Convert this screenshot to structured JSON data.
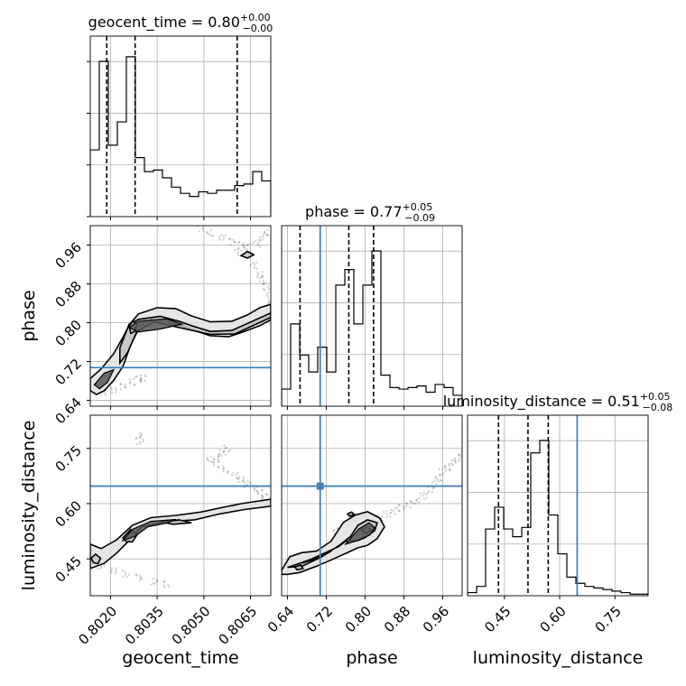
{
  "chart_data": {
    "type": "corner",
    "parameters": [
      "geocent_time",
      "phase",
      "luminosity_distance"
    ],
    "titles": [
      {
        "param": "geocent_time",
        "prefix": "geocent_time = ",
        "median": "0.80",
        "plus": "+0.00",
        "minus": "−0.00"
      },
      {
        "param": "phase",
        "prefix": "phase = ",
        "median": "0.77",
        "plus": "+0.05",
        "minus": "−0.09"
      },
      {
        "param": "luminosity_distance",
        "prefix": "luminosity_distance = ",
        "median": "0.51",
        "plus": "+0.05",
        "minus": "−0.08"
      }
    ],
    "axes": {
      "geocent_time": {
        "range": [
          0.80135,
          0.80715
        ],
        "ticks": [
          0.802,
          0.8035,
          0.805,
          0.8065
        ],
        "tick_labels": [
          "0.8020",
          "0.8035",
          "0.8050",
          "0.8065"
        ]
      },
      "phase": {
        "range": [
          0.628,
          1.0
        ],
        "ticks": [
          0.64,
          0.72,
          0.8,
          0.88,
          0.96
        ],
        "tick_labels": [
          "0.64",
          "0.72",
          "0.80",
          "0.88",
          "0.96"
        ]
      },
      "luminosity_distance": {
        "range": [
          0.35,
          0.84
        ],
        "ticks": [
          0.45,
          0.6,
          0.75
        ],
        "tick_labels": [
          "0.45",
          "0.60",
          "0.75"
        ]
      }
    },
    "truths": {
      "phase": 0.7075,
      "luminosity_distance": 0.6475
    },
    "quantiles": {
      "geocent_time": [
        0.80188,
        0.80279,
        0.80607
      ],
      "phase": [
        0.666,
        0.7665,
        0.8175
      ],
      "luminosity_distance": [
        0.434,
        0.514,
        0.569
      ]
    },
    "histograms": {
      "geocent_time": {
        "edges": [
          0.80135,
          0.80164,
          0.80193,
          0.80222,
          0.80251,
          0.8028,
          0.80309,
          0.80338,
          0.80367,
          0.80396,
          0.80425,
          0.80454,
          0.80483,
          0.80512,
          0.80541,
          0.8057,
          0.80599,
          0.80628,
          0.80657,
          0.80686,
          0.80715
        ],
        "counts": [
          0.43,
          1.0,
          0.46,
          0.61,
          1.03,
          0.38,
          0.29,
          0.3,
          0.25,
          0.19,
          0.15,
          0.13,
          0.16,
          0.15,
          0.17,
          0.17,
          0.2,
          0.21,
          0.29,
          0.23
        ]
      },
      "phase": {
        "edges": [
          0.628,
          0.6466,
          0.6652,
          0.6838,
          0.7024,
          0.721,
          0.7396,
          0.7582,
          0.7768,
          0.7954,
          0.814,
          0.8326,
          0.8512,
          0.8698,
          0.8884,
          0.907,
          0.9256,
          0.9442,
          0.9628,
          0.9814,
          1.0
        ],
        "counts": [
          0.11,
          0.53,
          0.33,
          0.22,
          0.38,
          0.22,
          0.78,
          0.88,
          0.53,
          0.78,
          1.0,
          0.2,
          0.12,
          0.11,
          0.12,
          0.13,
          0.09,
          0.14,
          0.12,
          0.07
        ]
      },
      "luminosity_distance": {
        "edges": [
          0.35,
          0.3745,
          0.399,
          0.4235,
          0.448,
          0.4725,
          0.497,
          0.5215,
          0.546,
          0.5705,
          0.595,
          0.6195,
          0.644,
          0.6685,
          0.693,
          0.7175,
          0.742,
          0.7665,
          0.791,
          0.8155,
          0.84
        ],
        "counts": [
          0.02,
          0.06,
          0.43,
          0.57,
          0.43,
          0.38,
          0.44,
          0.92,
          1.0,
          0.52,
          0.27,
          0.12,
          0.08,
          0.06,
          0.05,
          0.04,
          0.03,
          0.02,
          0.01,
          0.01
        ]
      }
    },
    "contours": {
      "phase|geocent_time": [
        [
          [
            0.80135,
            0.685
          ],
          [
            0.8017,
            0.705
          ],
          [
            0.8021,
            0.736
          ],
          [
            0.8024,
            0.77
          ],
          [
            0.80262,
            0.797
          ],
          [
            0.8029,
            0.818
          ],
          [
            0.8035,
            0.831
          ],
          [
            0.8041,
            0.829
          ],
          [
            0.8046,
            0.814
          ],
          [
            0.8052,
            0.802
          ],
          [
            0.8059,
            0.803
          ],
          [
            0.8064,
            0.816
          ],
          [
            0.8068,
            0.831
          ],
          [
            0.80715,
            0.838
          ],
          [
            0.80715,
            0.806
          ],
          [
            0.8068,
            0.794
          ],
          [
            0.8063,
            0.782
          ],
          [
            0.8058,
            0.771
          ],
          [
            0.8052,
            0.773
          ],
          [
            0.8046,
            0.786
          ],
          [
            0.8039,
            0.802
          ],
          [
            0.8033,
            0.807
          ],
          [
            0.80295,
            0.793
          ],
          [
            0.80265,
            0.754
          ],
          [
            0.8024,
            0.71
          ],
          [
            0.8021,
            0.681
          ],
          [
            0.8018,
            0.66
          ],
          [
            0.80155,
            0.652
          ],
          [
            0.80135,
            0.66
          ]
        ],
        [
          [
            0.8023,
            0.748
          ],
          [
            0.8026,
            0.797
          ],
          [
            0.8029,
            0.807
          ],
          [
            0.8036,
            0.813
          ],
          [
            0.8042,
            0.803
          ],
          [
            0.8046,
            0.794
          ],
          [
            0.8052,
            0.782
          ],
          [
            0.8059,
            0.784
          ],
          [
            0.80715,
            0.82
          ],
          [
            0.80715,
            0.811
          ],
          [
            0.806,
            0.777
          ],
          [
            0.8052,
            0.776
          ],
          [
            0.8042,
            0.79
          ],
          [
            0.8034,
            0.802
          ],
          [
            0.80285,
            0.782
          ],
          [
            0.80255,
            0.739
          ],
          [
            0.8023,
            0.717
          ]
        ],
        [
          [
            0.8026,
            0.793
          ],
          [
            0.80272,
            0.803
          ],
          [
            0.80285,
            0.797
          ],
          [
            0.80278,
            0.782
          ],
          [
            0.80265,
            0.778
          ]
        ],
        [
          [
            0.8062,
            0.938
          ],
          [
            0.8064,
            0.947
          ],
          [
            0.8066,
            0.94
          ],
          [
            0.8064,
            0.933
          ]
        ]
      ],
      "luminosity_distance|geocent_time": [
        [
          [
            0.80135,
            0.49
          ],
          [
            0.8017,
            0.478
          ],
          [
            0.8022,
            0.502
          ],
          [
            0.8027,
            0.541
          ],
          [
            0.8033,
            0.562
          ],
          [
            0.8041,
            0.568
          ],
          [
            0.8049,
            0.577
          ],
          [
            0.8055,
            0.588
          ],
          [
            0.8062,
            0.6
          ],
          [
            0.80715,
            0.612
          ],
          [
            0.80715,
            0.593
          ],
          [
            0.8063,
            0.584
          ],
          [
            0.8055,
            0.572
          ],
          [
            0.8047,
            0.556
          ],
          [
            0.8038,
            0.551
          ],
          [
            0.803,
            0.537
          ],
          [
            0.8026,
            0.5
          ],
          [
            0.8022,
            0.466
          ],
          [
            0.8018,
            0.438
          ],
          [
            0.80135,
            0.424
          ]
        ],
        [
          [
            0.80138,
            0.452
          ],
          [
            0.80152,
            0.463
          ],
          [
            0.80168,
            0.452
          ],
          [
            0.8016,
            0.437
          ],
          [
            0.80145,
            0.44
          ]
        ],
        [
          [
            0.8024,
            0.507
          ],
          [
            0.80265,
            0.53
          ],
          [
            0.80285,
            0.515
          ],
          [
            0.8027,
            0.496
          ],
          [
            0.8025,
            0.497
          ]
        ],
        [
          [
            0.8036,
            0.551
          ],
          [
            0.8042,
            0.556
          ],
          [
            0.8046,
            0.548
          ],
          [
            0.804,
            0.544
          ]
        ]
      ],
      "luminosity_distance|phase": [
        [
          [
            0.628,
            0.419
          ],
          [
            0.645,
            0.456
          ],
          [
            0.67,
            0.467
          ],
          [
            0.7,
            0.471
          ],
          [
            0.73,
            0.498
          ],
          [
            0.755,
            0.549
          ],
          [
            0.78,
            0.569
          ],
          [
            0.805,
            0.578
          ],
          [
            0.83,
            0.561
          ],
          [
            0.84,
            0.537
          ],
          [
            0.825,
            0.505
          ],
          [
            0.805,
            0.487
          ],
          [
            0.785,
            0.48
          ],
          [
            0.76,
            0.465
          ],
          [
            0.735,
            0.45
          ],
          [
            0.7,
            0.43
          ],
          [
            0.665,
            0.413
          ],
          [
            0.64,
            0.408
          ],
          [
            0.628,
            0.408
          ]
        ],
        [
          [
            0.64,
            0.427
          ],
          [
            0.665,
            0.438
          ],
          [
            0.69,
            0.45
          ],
          [
            0.72,
            0.468
          ],
          [
            0.745,
            0.483
          ],
          [
            0.76,
            0.498
          ],
          [
            0.785,
            0.5
          ],
          [
            0.8,
            0.508
          ],
          [
            0.82,
            0.527
          ],
          [
            0.825,
            0.548
          ],
          [
            0.805,
            0.556
          ],
          [
            0.785,
            0.541
          ],
          [
            0.77,
            0.511
          ],
          [
            0.745,
            0.485
          ],
          [
            0.71,
            0.455
          ],
          [
            0.67,
            0.43
          ]
        ],
        [
          [
            0.655,
            0.428
          ],
          [
            0.667,
            0.434
          ],
          [
            0.672,
            0.424
          ],
          [
            0.66,
            0.42
          ]
        ],
        [
          [
            0.764,
            0.572
          ],
          [
            0.772,
            0.577
          ],
          [
            0.778,
            0.57
          ],
          [
            0.768,
            0.566
          ]
        ],
        [
          [
            0.793,
            0.528
          ],
          [
            0.804,
            0.536
          ],
          [
            0.812,
            0.529
          ],
          [
            0.802,
            0.519
          ]
        ]
      ]
    },
    "filled_levels": {
      "phase|geocent_time": [
        [
          [
            0.8026,
            0.79
          ],
          [
            0.8029,
            0.803
          ],
          [
            0.8038,
            0.808
          ],
          [
            0.8043,
            0.797
          ],
          [
            0.8036,
            0.787
          ],
          [
            0.8029,
            0.781
          ]
        ],
        [
          [
            0.80148,
            0.672
          ],
          [
            0.8018,
            0.696
          ],
          [
            0.8021,
            0.703
          ],
          [
            0.8019,
            0.677
          ],
          [
            0.80165,
            0.664
          ]
        ]
      ],
      "luminosity_distance|geocent_time": [
        [
          [
            0.8024,
            0.5
          ],
          [
            0.8027,
            0.53
          ],
          [
            0.8033,
            0.552
          ],
          [
            0.8041,
            0.557
          ],
          [
            0.8038,
            0.547
          ],
          [
            0.8032,
            0.537
          ],
          [
            0.8028,
            0.512
          ]
        ]
      ],
      "luminosity_distance|phase": [
        [
          [
            0.76,
            0.49
          ],
          [
            0.785,
            0.5
          ],
          [
            0.81,
            0.515
          ],
          [
            0.82,
            0.535
          ],
          [
            0.808,
            0.548
          ],
          [
            0.787,
            0.531
          ],
          [
            0.768,
            0.503
          ]
        ],
        [
          [
            0.67,
            0.438
          ],
          [
            0.7,
            0.45
          ],
          [
            0.73,
            0.47
          ],
          [
            0.71,
            0.458
          ],
          [
            0.68,
            0.442
          ]
        ]
      ]
    },
    "scatter_tracks": {
      "phase|geocent_time": [
        [
          0.80175,
          0.657
        ],
        [
          0.8021,
          0.66
        ],
        [
          0.8024,
          0.668
        ],
        [
          0.8027,
          0.678
        ],
        [
          0.8029,
          0.683
        ],
        [
          0.80305,
          0.686
        ],
        [
          0.8061,
          0.945
        ],
        [
          0.8064,
          0.956
        ],
        [
          0.8067,
          0.963
        ],
        [
          0.8069,
          0.975
        ],
        [
          0.80705,
          0.985
        ],
        [
          0.8049,
          0.995
        ],
        [
          0.8052,
          0.985
        ],
        [
          0.8056,
          0.975
        ],
        [
          0.8059,
          0.967
        ],
        [
          0.8062,
          0.96
        ],
        [
          0.8066,
          0.918
        ],
        [
          0.8068,
          0.9
        ],
        [
          0.8069,
          0.888
        ],
        [
          0.807,
          0.874
        ],
        [
          0.80712,
          0.856
        ],
        [
          0.80715,
          0.843
        ]
      ],
      "luminosity_distance|geocent_time": [
        [
          0.8017,
          0.432
        ],
        [
          0.8021,
          0.42
        ],
        [
          0.8025,
          0.409
        ],
        [
          0.8029,
          0.399
        ],
        [
          0.8034,
          0.389
        ],
        [
          0.8038,
          0.381
        ],
        [
          0.8052,
          0.72
        ],
        [
          0.8054,
          0.707
        ],
        [
          0.8057,
          0.693
        ],
        [
          0.806,
          0.676
        ],
        [
          0.8062,
          0.664
        ],
        [
          0.8064,
          0.652
        ],
        [
          0.8066,
          0.641
        ],
        [
          0.8068,
          0.629
        ],
        [
          0.80695,
          0.618
        ],
        [
          0.8029,
          0.785
        ],
        [
          0.80295,
          0.77
        ],
        [
          0.8054,
          0.727
        ],
        [
          0.8056,
          0.739
        ],
        [
          0.80575,
          0.75
        ]
      ],
      "luminosity_distance|phase": [
        [
          0.83,
          0.56
        ],
        [
          0.845,
          0.571
        ],
        [
          0.86,
          0.58
        ],
        [
          0.875,
          0.588
        ],
        [
          0.89,
          0.598
        ],
        [
          0.905,
          0.608
        ],
        [
          0.92,
          0.621
        ],
        [
          0.935,
          0.638
        ],
        [
          0.945,
          0.653
        ],
        [
          0.952,
          0.67
        ],
        [
          0.96,
          0.686
        ],
        [
          0.97,
          0.7
        ],
        [
          0.98,
          0.712
        ],
        [
          0.99,
          0.724
        ],
        [
          1.0,
          0.738
        ],
        [
          0.74,
          0.525
        ],
        [
          0.76,
          0.546
        ],
        [
          0.775,
          0.559
        ],
        [
          0.78,
          0.567
        ]
      ]
    },
    "truth_marker": {
      "x": 0.7075,
      "y": 0.6475
    }
  }
}
